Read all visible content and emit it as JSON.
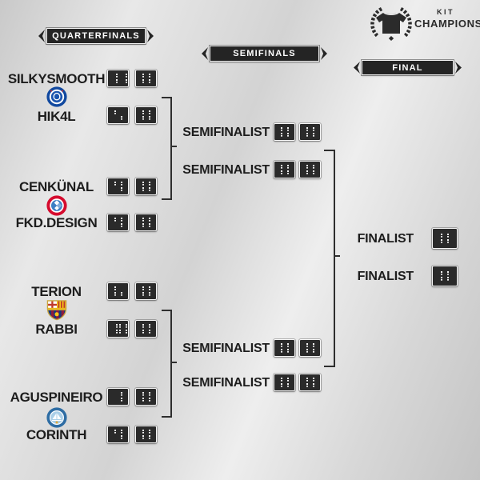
{
  "logo": {
    "kit": "KIT",
    "champions": "CHAMPIONS"
  },
  "banners": {
    "quarterfinals": "QUARTERFINALS",
    "semifinals": "SEMIFINALS",
    "final": "FINAL"
  },
  "quarterfinals": [
    {
      "badge": "chelsea",
      "team_a": "SILKYSMOOTH",
      "score_a1": "13",
      "score_a2": "0",
      "team_b": "HIK4L",
      "score_b1": "5",
      "score_b2": "0"
    },
    {
      "badge": "bayern-munich",
      "team_a": "CENKÜNAL",
      "score_a1": "9",
      "score_a2": "0",
      "team_b": "FKD.DESIGN",
      "score_b1": "9",
      "score_b2": "0"
    },
    {
      "badge": "fc-barcelona",
      "team_a": "TERION",
      "score_a1": "6",
      "score_a2": "0",
      "team_b": "RABBI",
      "score_b1": "10",
      "score_b2": "0"
    },
    {
      "badge": "manchester-city",
      "team_a": "AGUSPINEIRO",
      "score_a1": "7",
      "score_a2": "0",
      "team_b": "CORINTH",
      "score_b1": "9",
      "score_b2": "0"
    }
  ],
  "semifinals": [
    {
      "label": "SEMIFINALIST",
      "s1": "0",
      "s2": "0"
    },
    {
      "label": "SEMIFINALIST",
      "s1": "0",
      "s2": "0"
    },
    {
      "label": "SEMIFINALIST",
      "s1": "0",
      "s2": "0"
    },
    {
      "label": "SEMIFINALIST",
      "s1": "0",
      "s2": "0"
    }
  ],
  "final": [
    {
      "label": "FINALIST",
      "s1": "0"
    },
    {
      "label": "FINALIST",
      "s1": "0"
    }
  ],
  "colors": {
    "panel": "#242424",
    "text": "#1d1d1d",
    "led": "#f1f1f1",
    "line": "#2e2e2e"
  }
}
